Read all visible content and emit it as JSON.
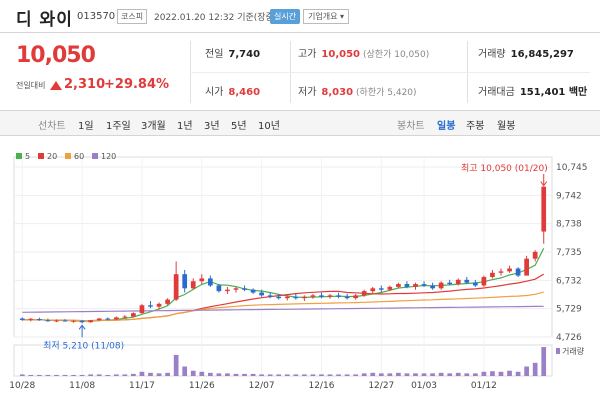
{
  "header": {
    "name": "디 와이",
    "code": "013570",
    "market": "코스피",
    "datetime": "2022.01.20 12:32 기준(장중)",
    "realtime": "실시간",
    "company_info": "기업개요 ▾"
  },
  "summary": {
    "price": "10,050",
    "change_label": "전일대비",
    "change": "2,310",
    "change_pct": "+29.84%",
    "prev_close_label": "전일",
    "prev_close": "7,740",
    "open_label": "시가",
    "open": "8,460",
    "high_label": "고가",
    "high": "10,050",
    "high_sub": "(상한가 10,050)",
    "low_label": "저가",
    "low": "8,030",
    "low_sub": "(하한가 5,420)",
    "volume_label": "거래량",
    "volume": "16,845,297",
    "amount_label": "거래대금",
    "amount": "151,401 백만"
  },
  "tabs": {
    "line": "선차트",
    "periods": [
      "1일",
      "1주일",
      "3개월",
      "1년",
      "3년",
      "5년",
      "10년"
    ],
    "candle": "봉차트",
    "candle_periods": [
      "일봉",
      "주봉",
      "월봉"
    ]
  },
  "colors": {
    "up": "#e03a3a",
    "down": "#2a6bd1",
    "accent": "#2a6bd1",
    "volume": "#9b7fc7"
  },
  "chart_data": {
    "type": "candlestick",
    "legend": [
      {
        "label": "5",
        "color": "#4caf50"
      },
      {
        "label": "20",
        "color": "#e03a3a"
      },
      {
        "label": "60",
        "color": "#f0a040"
      },
      {
        "label": "120",
        "color": "#9b7fc7"
      }
    ],
    "y_ticks": [
      "10,745",
      "9,742",
      "8,738",
      "7,735",
      "6,732",
      "5,729",
      "4,726"
    ],
    "ylim": [
      4726,
      10745
    ],
    "x_ticks": [
      "10/28",
      "11/08",
      "11/17",
      "11/26",
      "12/07",
      "12/16",
      "12/27",
      "01/03",
      "01/12"
    ],
    "x_tick_index": [
      0,
      7,
      14,
      21,
      28,
      35,
      42,
      47,
      54
    ],
    "high_annotation": "최고 10,050 (01/20)",
    "low_annotation": "최저 5,210 (11/08)",
    "volume_label": "거래량",
    "candles": [
      [
        5380,
        5420,
        5300,
        5330
      ],
      [
        5330,
        5400,
        5280,
        5360
      ],
      [
        5360,
        5410,
        5300,
        5320
      ],
      [
        5320,
        5380,
        5260,
        5290
      ],
      [
        5290,
        5350,
        5250,
        5310
      ],
      [
        5310,
        5360,
        5270,
        5280
      ],
      [
        5280,
        5320,
        5230,
        5300
      ],
      [
        5300,
        5330,
        5210,
        5250
      ],
      [
        5250,
        5330,
        5230,
        5320
      ],
      [
        5320,
        5400,
        5300,
        5380
      ],
      [
        5380,
        5420,
        5320,
        5350
      ],
      [
        5350,
        5450,
        5330,
        5420
      ],
      [
        5420,
        5500,
        5380,
        5450
      ],
      [
        5450,
        5600,
        5420,
        5570
      ],
      [
        5570,
        5900,
        5550,
        5850
      ],
      [
        5850,
        6000,
        5750,
        5800
      ],
      [
        5800,
        5950,
        5700,
        5900
      ],
      [
        5900,
        6100,
        5850,
        6050
      ],
      [
        6050,
        7400,
        6000,
        6950
      ],
      [
        6950,
        7100,
        6300,
        6450
      ],
      [
        6450,
        6800,
        6400,
        6700
      ],
      [
        6700,
        6950,
        6600,
        6800
      ],
      [
        6800,
        6900,
        6500,
        6550
      ],
      [
        6550,
        6600,
        6300,
        6350
      ],
      [
        6350,
        6500,
        6250,
        6400
      ],
      [
        6400,
        6500,
        6300,
        6450
      ],
      [
        6450,
        6550,
        6350,
        6400
      ],
      [
        6400,
        6450,
        6250,
        6300
      ],
      [
        6300,
        6400,
        6150,
        6200
      ],
      [
        6200,
        6300,
        6100,
        6150
      ],
      [
        6150,
        6250,
        6050,
        6100
      ],
      [
        6100,
        6200,
        6020,
        6150
      ],
      [
        6150,
        6250,
        6050,
        6100
      ],
      [
        6100,
        6200,
        6000,
        6150
      ],
      [
        6150,
        6250,
        6080,
        6200
      ],
      [
        6200,
        6300,
        6100,
        6150
      ],
      [
        6150,
        6250,
        6080,
        6200
      ],
      [
        6200,
        6300,
        6100,
        6150
      ],
      [
        6150,
        6250,
        6050,
        6100
      ],
      [
        6100,
        6250,
        6050,
        6200
      ],
      [
        6200,
        6400,
        6150,
        6350
      ],
      [
        6350,
        6500,
        6250,
        6450
      ],
      [
        6450,
        6550,
        6300,
        6400
      ],
      [
        6400,
        6550,
        6350,
        6500
      ],
      [
        6500,
        6650,
        6450,
        6600
      ],
      [
        6600,
        6700,
        6450,
        6500
      ],
      [
        6500,
        6650,
        6400,
        6600
      ],
      [
        6600,
        6700,
        6500,
        6550
      ],
      [
        6550,
        6650,
        6400,
        6450
      ],
      [
        6450,
        6700,
        6400,
        6650
      ],
      [
        6650,
        6750,
        6550,
        6600
      ],
      [
        6600,
        6800,
        6550,
        6750
      ],
      [
        6750,
        6850,
        6600,
        6650
      ],
      [
        6650,
        6750,
        6500,
        6550
      ],
      [
        6550,
        6900,
        6500,
        6850
      ],
      [
        6850,
        7100,
        6800,
        7000
      ],
      [
        7000,
        7150,
        6900,
        7050
      ],
      [
        7050,
        7250,
        7000,
        7150
      ],
      [
        7150,
        7200,
        6850,
        6900
      ],
      [
        6900,
        7600,
        6900,
        7500
      ],
      [
        7500,
        7800,
        7400,
        7740
      ],
      [
        8460,
        10050,
        8030,
        10050
      ]
    ],
    "volumes": [
      3,
      2,
      2,
      2,
      2,
      2,
      2,
      2,
      3,
      3,
      2,
      3,
      3,
      4,
      8,
      6,
      5,
      6,
      40,
      18,
      10,
      8,
      6,
      5,
      5,
      4,
      4,
      4,
      3,
      3,
      3,
      3,
      3,
      3,
      3,
      3,
      3,
      3,
      3,
      3,
      5,
      6,
      5,
      5,
      6,
      5,
      5,
      5,
      5,
      6,
      5,
      6,
      5,
      5,
      8,
      9,
      8,
      10,
      8,
      18,
      25,
      55
    ]
  }
}
